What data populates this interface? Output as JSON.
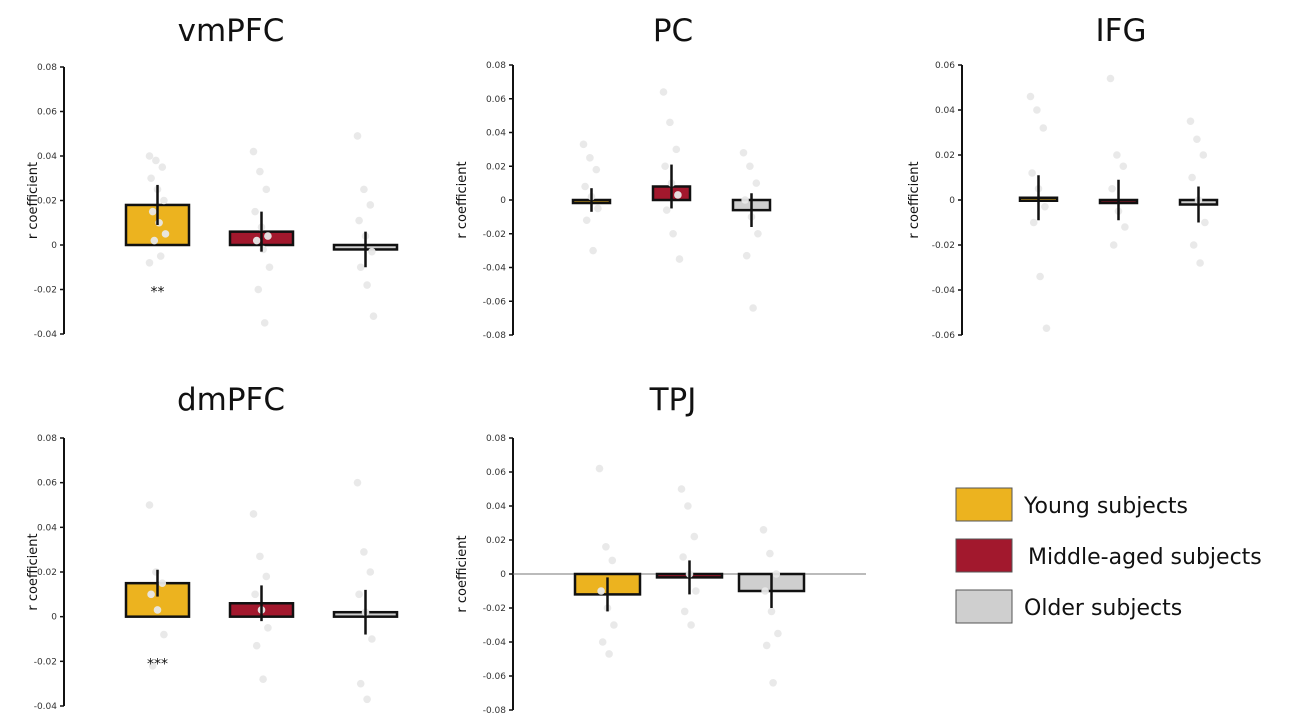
{
  "chart_data": [
    {
      "type": "bar",
      "title": "vmPFC",
      "ylabel": "r coefficient",
      "ylim": [
        -0.04,
        0.08
      ],
      "yticks": [
        "-0.04",
        "-0.02",
        "0",
        "0.02",
        "0.04",
        "0.06",
        "0.08"
      ],
      "categories": [
        "Young subjects",
        "Middle-aged subjects",
        "Older subjects"
      ],
      "values": [
        0.018,
        0.006,
        -0.002
      ],
      "error": [
        0.009,
        0.009,
        0.008
      ],
      "points": [
        [
          0.04,
          0.038,
          0.035,
          0.03,
          0.025,
          0.02,
          0.015,
          0.01,
          0.005,
          0.002,
          -0.005,
          -0.008
        ],
        [
          0.042,
          0.033,
          0.025,
          0.015,
          0.008,
          0.004,
          0.002,
          -0.002,
          -0.01,
          -0.02,
          -0.035
        ],
        [
          0.049,
          0.025,
          0.018,
          0.011,
          0.004,
          -0.003,
          -0.01,
          -0.018,
          -0.032
        ]
      ],
      "annotations": [
        {
          "category": "Young subjects",
          "text": "**"
        }
      ],
      "zero_line": false
    },
    {
      "type": "bar",
      "title": "PC",
      "ylabel": "r coefficient",
      "ylim": [
        -0.08,
        0.08
      ],
      "yticks": [
        "-0.08",
        "-0.06",
        "-0.04",
        "-0.02",
        "0",
        "0.02",
        "0.04",
        "0.06",
        "0.08"
      ],
      "categories": [
        "Young subjects",
        "Middle-aged subjects",
        "Older subjects"
      ],
      "values": [
        0.0,
        0.008,
        -0.006
      ],
      "error": [
        0.007,
        0.013,
        0.01
      ],
      "points": [
        [
          0.033,
          0.025,
          0.018,
          0.008,
          0.002,
          -0.005,
          -0.012,
          -0.03
        ],
        [
          0.064,
          0.046,
          0.03,
          0.02,
          0.01,
          0.003,
          -0.006,
          -0.02,
          -0.035
        ],
        [
          0.028,
          0.02,
          0.01,
          0.0,
          -0.01,
          -0.02,
          -0.033,
          -0.064
        ]
      ],
      "annotations": [],
      "zero_line": false
    },
    {
      "type": "bar",
      "title": "IFG",
      "ylabel": "r coefficient",
      "ylim": [
        -0.06,
        0.06
      ],
      "yticks": [
        "-0.06",
        "-0.04",
        "-0.02",
        "0",
        "0.02",
        "0.04",
        "0.06"
      ],
      "categories": [
        "Young subjects",
        "Middle-aged subjects",
        "Older subjects"
      ],
      "values": [
        0.001,
        0.0,
        -0.002
      ],
      "error": [
        0.01,
        0.009,
        0.008
      ],
      "points": [
        [
          0.046,
          0.04,
          0.032,
          0.012,
          0.005,
          -0.003,
          -0.01,
          -0.034,
          -0.057
        ],
        [
          0.054,
          0.02,
          0.015,
          0.005,
          -0.005,
          -0.012,
          -0.02
        ],
        [
          0.035,
          0.027,
          0.02,
          0.01,
          0.0,
          -0.01,
          -0.02,
          -0.028
        ]
      ],
      "annotations": [],
      "zero_line": false
    },
    {
      "type": "bar",
      "title": "dmPFC",
      "ylabel": "r coefficient",
      "ylim": [
        -0.04,
        0.08
      ],
      "yticks": [
        "-0.04",
        "-0.02",
        "0",
        "0.02",
        "0.04",
        "0.06",
        "0.08"
      ],
      "categories": [
        "Young subjects",
        "Middle-aged subjects",
        "Older subjects"
      ],
      "values": [
        0.015,
        0.006,
        0.002
      ],
      "error": [
        0.006,
        0.008,
        0.01
      ],
      "points": [
        [
          0.05,
          0.02,
          0.015,
          0.01,
          0.003,
          -0.008,
          -0.022
        ],
        [
          0.046,
          0.027,
          0.018,
          0.01,
          0.003,
          -0.005,
          -0.013,
          -0.028
        ],
        [
          0.06,
          0.029,
          0.02,
          0.01,
          0.002,
          -0.01,
          -0.03,
          -0.037
        ]
      ],
      "annotations": [
        {
          "category": "Young subjects",
          "text": "***"
        }
      ],
      "zero_line": false
    },
    {
      "type": "bar",
      "title": "TPJ",
      "ylabel": "r coefficient",
      "ylim": [
        -0.08,
        0.08
      ],
      "yticks": [
        "-0.08",
        "-0.06",
        "-0.04",
        "-0.02",
        "0",
        "0.02",
        "0.04",
        "0.06",
        "0.08"
      ],
      "categories": [
        "Young subjects",
        "Middle-aged subjects",
        "Older subjects"
      ],
      "values": [
        -0.012,
        -0.002,
        -0.01
      ],
      "error": [
        0.01,
        0.01,
        0.01
      ],
      "points": [
        [
          0.062,
          0.016,
          0.008,
          -0.01,
          -0.02,
          -0.03,
          -0.04,
          -0.047
        ],
        [
          0.05,
          0.04,
          0.022,
          0.01,
          0.0,
          -0.01,
          -0.022,
          -0.03
        ],
        [
          0.026,
          0.012,
          0.0,
          -0.01,
          -0.022,
          -0.035,
          -0.042,
          -0.064
        ]
      ],
      "annotations": [],
      "zero_line": true
    }
  ],
  "legend": {
    "placement": "bottom-right",
    "items": [
      {
        "label": "Young subjects",
        "color": "#ecb31f"
      },
      {
        "label": "Middle-aged subjects",
        "color": "#a2182d"
      },
      {
        "label": "Older subjects",
        "color": "#cfcfcf"
      }
    ]
  },
  "colors": {
    "young": "#ecb31f",
    "middle": "#a2182d",
    "older": "#cfcfcf",
    "points": "#e8e8e8"
  }
}
